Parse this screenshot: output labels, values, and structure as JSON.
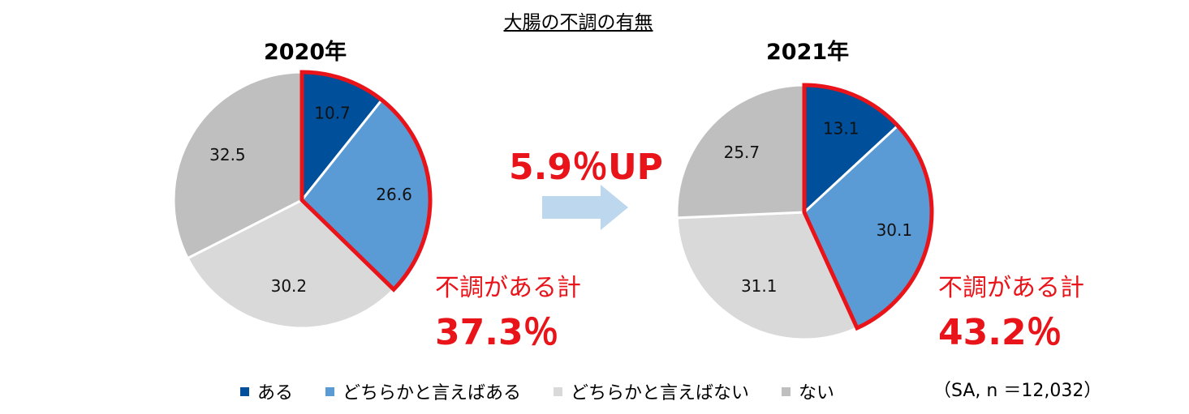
{
  "title": "大腸の不調の有無",
  "change_label": "5.9％UP",
  "sample_note": "（SA, n ＝12,032）",
  "colors": {
    "aru": "#004f9a",
    "dochiraka_aru": "#5b9bd5",
    "dochiraka_nai": "#d9d9d9",
    "nai": "#bfbfbf",
    "highlight": "#e8141a",
    "arrow": "#bdd7ee"
  },
  "chart_data": [
    {
      "type": "pie",
      "title": "2020年",
      "categories": [
        "ある",
        "どちらかと言えばある",
        "どちらかと言えばない",
        "ない"
      ],
      "values": [
        10.7,
        26.6,
        30.2,
        32.5
      ],
      "highlight_label": "不調がある計",
      "highlight_value": "37.3％"
    },
    {
      "type": "pie",
      "title": "2021年",
      "categories": [
        "ある",
        "どちらかと言えばある",
        "どちらかと言えばない",
        "ない"
      ],
      "values": [
        13.1,
        30.1,
        31.1,
        25.7
      ],
      "highlight_label": "不調がある計",
      "highlight_value": "43.2％"
    }
  ],
  "legend": [
    {
      "label": "ある",
      "color": "#004f9a"
    },
    {
      "label": "どちらかと言えばある",
      "color": "#5b9bd5"
    },
    {
      "label": "どちらかと言えばない",
      "color": "#d9d9d9"
    },
    {
      "label": "ない",
      "color": "#bfbfbf"
    }
  ]
}
